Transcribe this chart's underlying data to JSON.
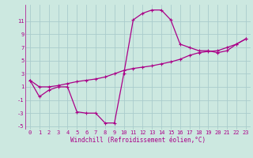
{
  "xlabel": "Windchill (Refroidissement éolien,°C)",
  "bg_color": "#cce8e0",
  "grid_color": "#aacccc",
  "line_color": "#aa0088",
  "x": [
    0,
    1,
    2,
    3,
    4,
    5,
    6,
    7,
    8,
    9,
    10,
    11,
    12,
    13,
    14,
    15,
    16,
    17,
    18,
    19,
    20,
    21,
    22,
    23
  ],
  "y_main": [
    2,
    -0.5,
    0.5,
    1,
    1,
    -2.8,
    -3,
    -3,
    -4.5,
    -4.5,
    3,
    11.2,
    12.2,
    12.7,
    12.7,
    11.2,
    7.5,
    7.0,
    6.5,
    6.5,
    6.2,
    6.5,
    7.5,
    8.3
  ],
  "y_ref": [
    2,
    1.0,
    1.0,
    1.2,
    1.5,
    1.8,
    2.0,
    2.2,
    2.5,
    3.0,
    3.5,
    3.8,
    4.0,
    4.2,
    4.5,
    4.8,
    5.2,
    5.8,
    6.2,
    6.4,
    6.5,
    7.0,
    7.5,
    8.3
  ],
  "ylim": [
    -5.5,
    13.5
  ],
  "xlim": [
    -0.5,
    23.5
  ],
  "yticks": [
    -5,
    -3,
    -1,
    1,
    3,
    5,
    7,
    9,
    11
  ],
  "xticks": [
    0,
    1,
    2,
    3,
    4,
    5,
    6,
    7,
    8,
    9,
    10,
    11,
    12,
    13,
    14,
    15,
    16,
    17,
    18,
    19,
    20,
    21,
    22,
    23
  ],
  "xtick_labels": [
    "0",
    "1",
    "2",
    "3",
    "4",
    "5",
    "6",
    "7",
    "8",
    "9",
    "10",
    "11",
    "12",
    "13",
    "14",
    "15",
    "16",
    "17",
    "18",
    "19",
    "20",
    "21",
    "22",
    "23"
  ],
  "tick_fontsize": 5.0,
  "xlabel_fontsize": 5.5,
  "line_width": 0.9,
  "marker_size": 3.0
}
